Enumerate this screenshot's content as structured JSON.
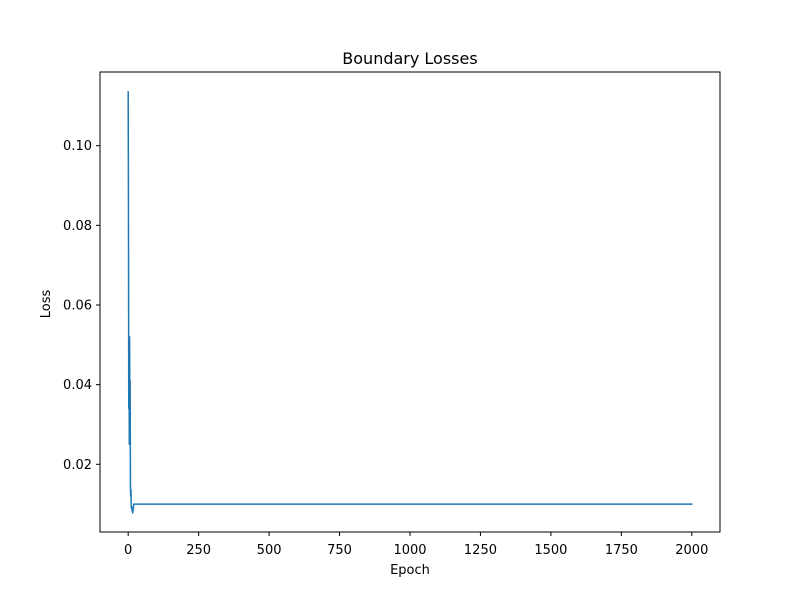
{
  "chart_data": {
    "type": "line",
    "title": "Boundary Losses",
    "xlabel": "Epoch",
    "ylabel": "Loss",
    "xlim": [
      -100,
      2100
    ],
    "ylim": [
      0.003,
      0.1185
    ],
    "x_ticks": [
      0,
      250,
      500,
      750,
      1000,
      1250,
      1500,
      1750,
      2000
    ],
    "x_tick_labels": [
      "0",
      "250",
      "500",
      "750",
      "1000",
      "1250",
      "1500",
      "1750",
      "2000"
    ],
    "y_ticks": [
      0.02,
      0.04,
      0.06,
      0.08,
      0.1
    ],
    "y_tick_labels": [
      "0.02",
      "0.04",
      "0.06",
      "0.08",
      "0.10"
    ],
    "grid": false,
    "series": [
      {
        "color": "#1f77b4",
        "x": [
          0,
          1,
          2,
          3,
          4,
          5,
          6,
          7,
          8,
          9,
          10,
          11,
          12,
          14,
          16,
          18,
          20,
          30,
          50,
          100,
          500,
          1000,
          1500,
          2000
        ],
        "y": [
          0.1135,
          0.085,
          0.034,
          0.045,
          0.025,
          0.052,
          0.033,
          0.041,
          0.015,
          0.012,
          0.0135,
          0.009,
          0.0095,
          0.0085,
          0.0078,
          0.0088,
          0.01,
          0.01,
          0.01,
          0.01,
          0.01,
          0.01,
          0.01,
          0.01
        ]
      }
    ]
  }
}
